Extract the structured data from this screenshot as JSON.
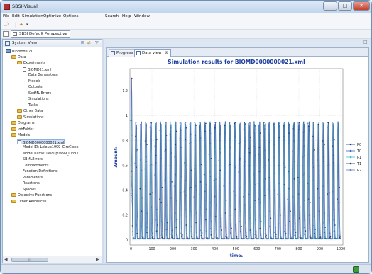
{
  "window": {
    "title": "SBSI-Visual",
    "min_glyph": "–",
    "max_glyph": "□",
    "close_glyph": "✕"
  },
  "menu": [
    "File",
    "Edit",
    "Simulation",
    "Optimize",
    "Options",
    "Search",
    "Help",
    "Window"
  ],
  "toolbar": {
    "icons": [
      "back-icon",
      "wand-icon"
    ]
  },
  "perspective": {
    "label": "SBSI Default Perspective"
  },
  "system_view": {
    "title": "System View",
    "tree": [
      {
        "label": "Biomodel21",
        "icon": "root",
        "depth": 0
      },
      {
        "label": "Data",
        "icon": "folder",
        "depth": 1
      },
      {
        "label": "Experiments",
        "icon": "folder",
        "depth": 2
      },
      {
        "label": "BIOMD21.xml",
        "icon": "file",
        "depth": 3
      },
      {
        "label": "Data Generators",
        "icon": "none",
        "depth": 4
      },
      {
        "label": "Models",
        "icon": "none",
        "depth": 4
      },
      {
        "label": "Outputs",
        "icon": "none",
        "depth": 4
      },
      {
        "label": "SedML Errors",
        "icon": "none",
        "depth": 4
      },
      {
        "label": "Simulations",
        "icon": "none",
        "depth": 4
      },
      {
        "label": "Tasks",
        "icon": "none",
        "depth": 4
      },
      {
        "label": "Other Data",
        "icon": "folder",
        "depth": 2
      },
      {
        "label": "Simulations",
        "icon": "folder",
        "depth": 2
      },
      {
        "label": "Diagrams",
        "icon": "folder",
        "depth": 1
      },
      {
        "label": "jobFolder",
        "icon": "folder",
        "depth": 1
      },
      {
        "label": "Models",
        "icon": "folder",
        "depth": 1
      },
      {
        "label": "BIOMD0000000021.xml",
        "icon": "file",
        "depth": 2,
        "selected": true
      },
      {
        "label": "Model ID: Leloup1999_CircClock",
        "icon": "none",
        "depth": 3
      },
      {
        "label": "Model name: Leloup1999_CircCl",
        "icon": "none",
        "depth": 3
      },
      {
        "label": "SBMLErrors",
        "icon": "none",
        "depth": 3
      },
      {
        "label": "Compartments",
        "icon": "none",
        "depth": 3
      },
      {
        "label": "Function Definitions",
        "icon": "none",
        "depth": 3
      },
      {
        "label": "Parameters",
        "icon": "none",
        "depth": 3
      },
      {
        "label": "Reactions",
        "icon": "none",
        "depth": 3
      },
      {
        "label": "Species",
        "icon": "none",
        "depth": 3
      },
      {
        "label": "Objective Functions",
        "icon": "folder",
        "depth": 1
      },
      {
        "label": "Other Resources",
        "icon": "folder",
        "depth": 1
      }
    ],
    "scroll_grip": "III"
  },
  "tabs": [
    {
      "label": "Progress",
      "active": false
    },
    {
      "label": "Data view",
      "active": true
    }
  ],
  "chart_data": {
    "type": "line",
    "title": "Simulation results for BIOMD0000000021.xml",
    "xlabel": "time₁",
    "ylabel": "Amount₁",
    "xlim": [
      -5,
      1010
    ],
    "ylim": [
      -0.04,
      1.38
    ],
    "xticks": [
      0,
      100,
      200,
      300,
      400,
      500,
      600,
      700,
      800,
      900,
      1000
    ],
    "yticks": [
      0,
      0.2,
      0.4,
      0.6,
      0.8,
      1,
      1.2
    ],
    "grid": true,
    "legend_position": "right",
    "series": [
      {
        "name": "P0",
        "color": "#1f3c88",
        "marker": "circle"
      },
      {
        "name": "T0",
        "color": "#3a63c9",
        "marker": "triangle"
      },
      {
        "name": "P1",
        "color": "#3fbfc9",
        "marker": "square"
      },
      {
        "name": "T1",
        "color": "#183d6b",
        "marker": "circle"
      },
      {
        "name": "P2",
        "color": "#5f7fbf",
        "marker": "triangle"
      }
    ],
    "period": 23.5,
    "initial_peak": 1.31,
    "oscillation_peak": 0.95,
    "oscillation_trough": 0.01
  },
  "colors": {
    "title": "#2040a0",
    "axis_text": "#222222",
    "grid": "#d8d8d8"
  }
}
